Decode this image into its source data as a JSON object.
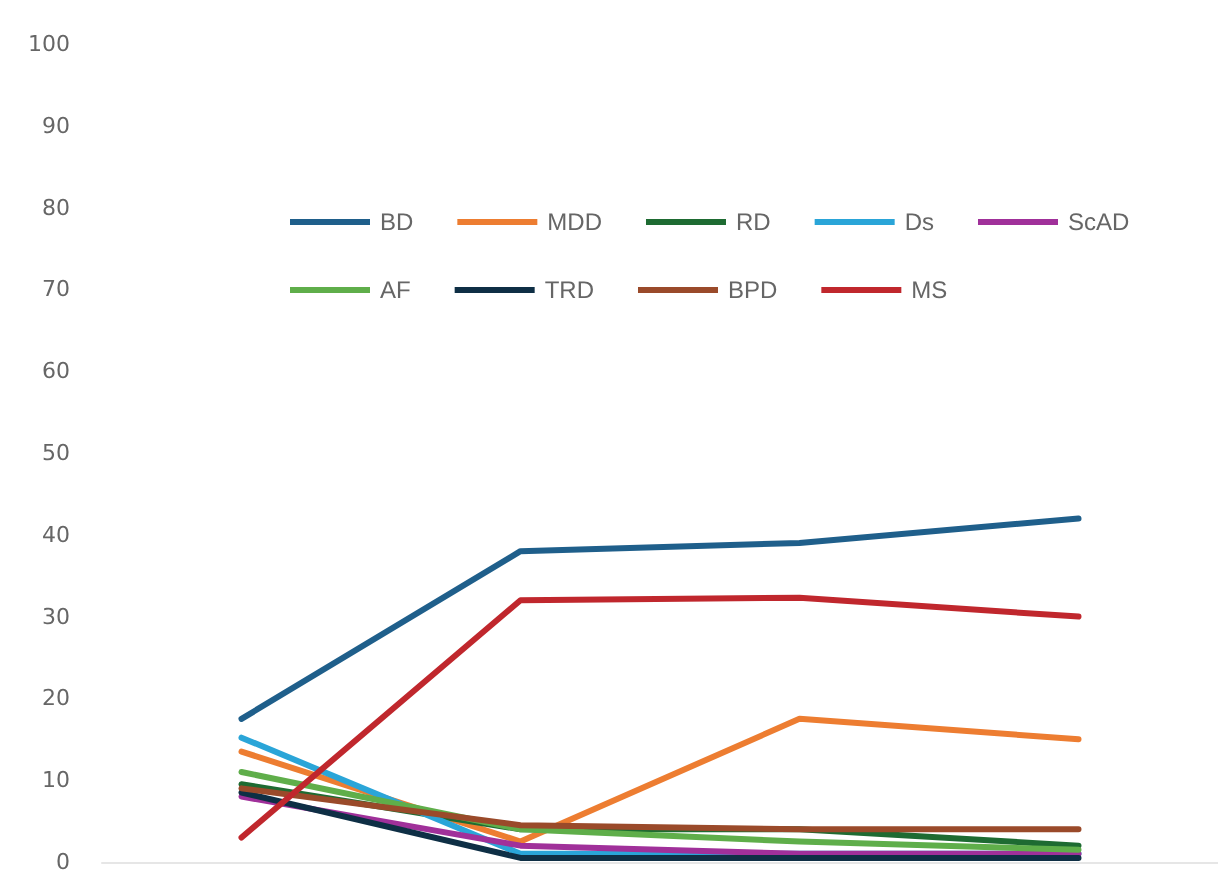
{
  "chart_data": {
    "type": "line",
    "categories": [
      null,
      null,
      null,
      null
    ],
    "ylim": [
      0,
      100
    ],
    "yticks": [
      0,
      10,
      20,
      30,
      40,
      50,
      60,
      70,
      80,
      90,
      100
    ],
    "grid": false,
    "legend": "top",
    "marker": "none",
    "line_style": "solid",
    "series": [
      {
        "name": "BD",
        "color": "#1f5f8b",
        "values": [
          17.5,
          38,
          39,
          42
        ]
      },
      {
        "name": "MDD",
        "color": "#ed7d31",
        "values": [
          13.5,
          2.5,
          17.5,
          15
        ]
      },
      {
        "name": "RD",
        "color": "#1e6b32",
        "values": [
          9.5,
          4,
          4,
          2
        ]
      },
      {
        "name": "Ds",
        "color": "#2aa5d8",
        "values": [
          15.2,
          1,
          1,
          1
        ]
      },
      {
        "name": "ScAD",
        "color": "#a0309a",
        "values": [
          8,
          2,
          1,
          1
        ]
      },
      {
        "name": "AF",
        "color": "#5fae4a",
        "values": [
          11,
          4,
          2.5,
          1.5
        ]
      },
      {
        "name": "TRD",
        "color": "#0e2f45",
        "values": [
          8.5,
          0.5,
          0.5,
          0.5
        ]
      },
      {
        "name": "BPD",
        "color": "#9a4a2a",
        "values": [
          9,
          4.5,
          4,
          4
        ]
      },
      {
        "name": "MS",
        "color": "#c0272d",
        "values": [
          3,
          32,
          32.3,
          30
        ]
      }
    ]
  }
}
